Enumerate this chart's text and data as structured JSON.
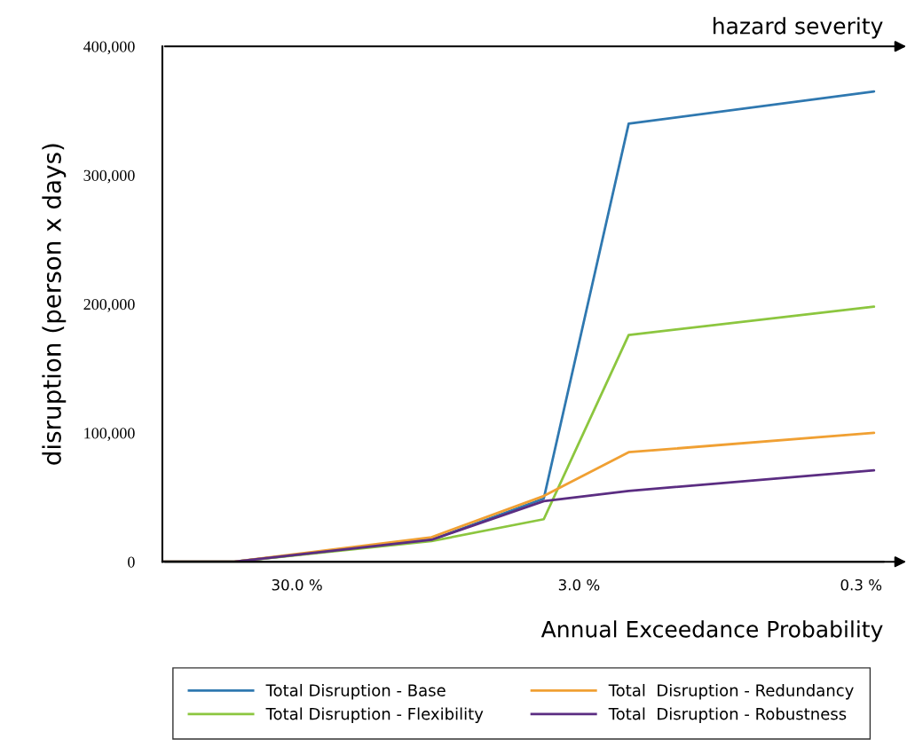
{
  "chart_data": {
    "type": "line",
    "xlabel": "Annual Exceedance Probability",
    "ylabel": "disruption (person x days)",
    "annotations": [
      "hazard severity"
    ],
    "x": [
      90,
      50,
      10,
      4,
      2,
      0.27
    ],
    "log": "x",
    "xlim": [
      90,
      0.25
    ],
    "xticks": [
      {
        "value": 30,
        "label": "30.0 %"
      },
      {
        "value": 3,
        "label": "3.0 %"
      },
      {
        "value": 0.3,
        "label": "0.3 %"
      }
    ],
    "ylim": [
      0,
      400000
    ],
    "yticks": [
      {
        "value": 0,
        "label": "0"
      },
      {
        "value": 100000,
        "label": "100,000"
      },
      {
        "value": 200000,
        "label": "200,000"
      },
      {
        "value": 300000,
        "label": "300,000"
      },
      {
        "value": 400000,
        "label": "400,000"
      }
    ],
    "series": [
      {
        "name": "Total Disruption - Base",
        "color": "#2f78b0",
        "values": [
          0,
          0,
          17000,
          49000,
          340000,
          365000
        ]
      },
      {
        "name": "Total Disruption - Flexibility",
        "color": "#8cc63f",
        "values": [
          0,
          0,
          16000,
          33000,
          176000,
          198000
        ]
      },
      {
        "name": "Total  Disruption - Redundancy",
        "color": "#f0a033",
        "values": [
          0,
          0,
          19000,
          51000,
          85000,
          100000
        ]
      },
      {
        "name": "Total  Disruption - Robustness",
        "color": "#5b2d82",
        "values": [
          0,
          0,
          17000,
          47000,
          55000,
          71000
        ]
      }
    ],
    "grid": false,
    "legend": "bottom",
    "marker": "none",
    "line_style": "solid"
  }
}
